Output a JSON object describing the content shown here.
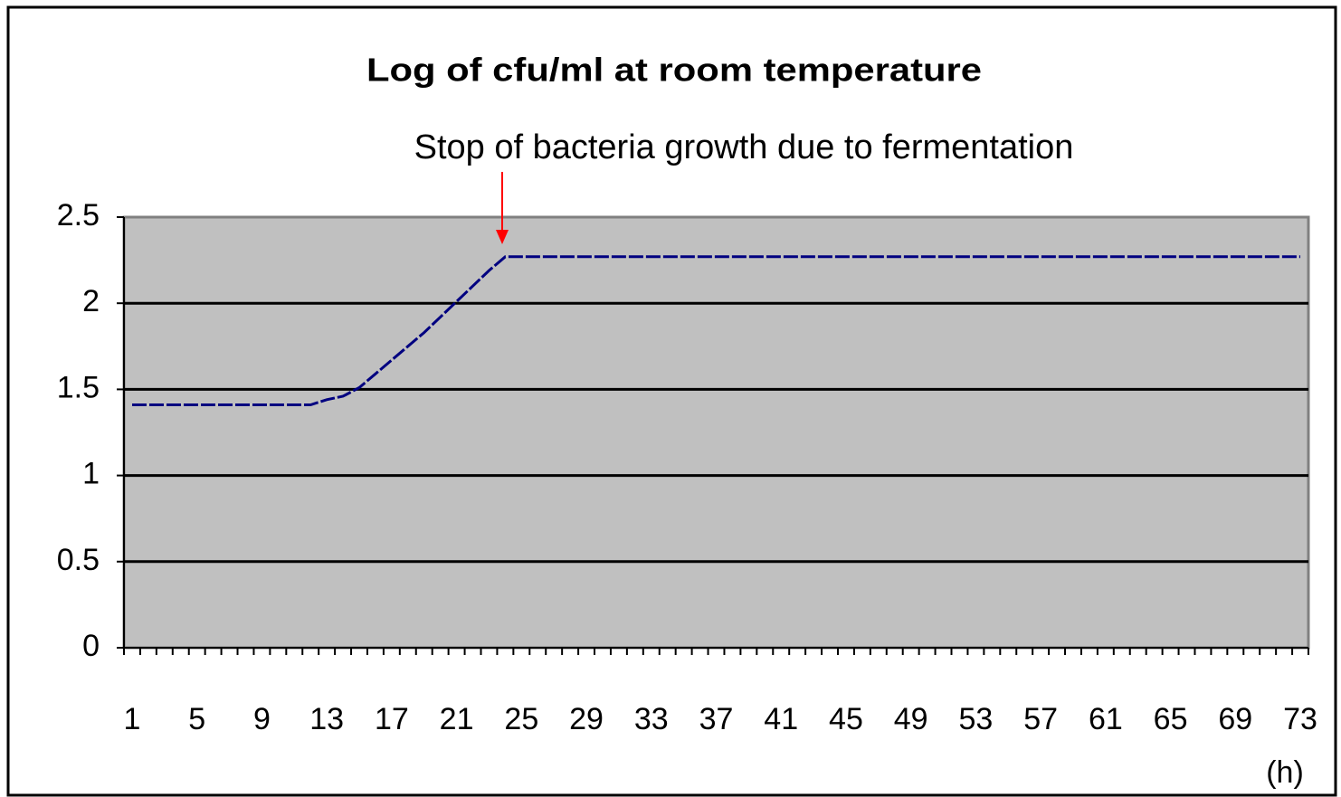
{
  "chart_data": {
    "type": "line",
    "title": "Log of cfu/ml at room temperature",
    "annotation": "Stop of bacteria growth due to fermentation",
    "xlabel": "(h)",
    "categories": [
      "1",
      null,
      null,
      null,
      "5",
      null,
      null,
      null,
      "9",
      null,
      null,
      null,
      "13",
      null,
      null,
      null,
      "17",
      null,
      null,
      null,
      "21",
      null,
      null,
      null,
      "25",
      null,
      null,
      null,
      "29",
      null,
      null,
      null,
      "33",
      null,
      null,
      null,
      "37",
      null,
      null,
      null,
      "41",
      null,
      null,
      null,
      "45",
      null,
      null,
      null,
      "49",
      null,
      null,
      null,
      "53",
      null,
      null,
      null,
      "57",
      null,
      null,
      null,
      "61",
      null,
      null,
      null,
      "65",
      null,
      null,
      null,
      "69",
      null,
      null,
      null,
      "73"
    ],
    "values": [
      1.41,
      1.41,
      1.41,
      1.41,
      1.41,
      1.41,
      1.41,
      1.41,
      1.41,
      1.41,
      1.41,
      1.41,
      1.44,
      1.46,
      1.51,
      1.59,
      1.67,
      1.75,
      1.83,
      1.92,
      2.01,
      2.1,
      2.19,
      2.27,
      2.27,
      2.27,
      2.27,
      2.27,
      2.27,
      2.27,
      2.27,
      2.27,
      2.27,
      2.27,
      2.27,
      2.27,
      2.27,
      2.27,
      2.27,
      2.27,
      2.27,
      2.27,
      2.27,
      2.27,
      2.27,
      2.27,
      2.27,
      2.27,
      2.27,
      2.27,
      2.27,
      2.27,
      2.27,
      2.27,
      2.27,
      2.27,
      2.27,
      2.27,
      2.27,
      2.27,
      2.27,
      2.27,
      2.27,
      2.27,
      2.27,
      2.27,
      2.27,
      2.27,
      2.27,
      2.27,
      2.27,
      2.27,
      2.27
    ],
    "color": "#000080",
    "ylim": [
      0,
      2.5
    ],
    "yticks": [
      0,
      0.5,
      1,
      1.5,
      2,
      2.5
    ],
    "grid": true
  }
}
